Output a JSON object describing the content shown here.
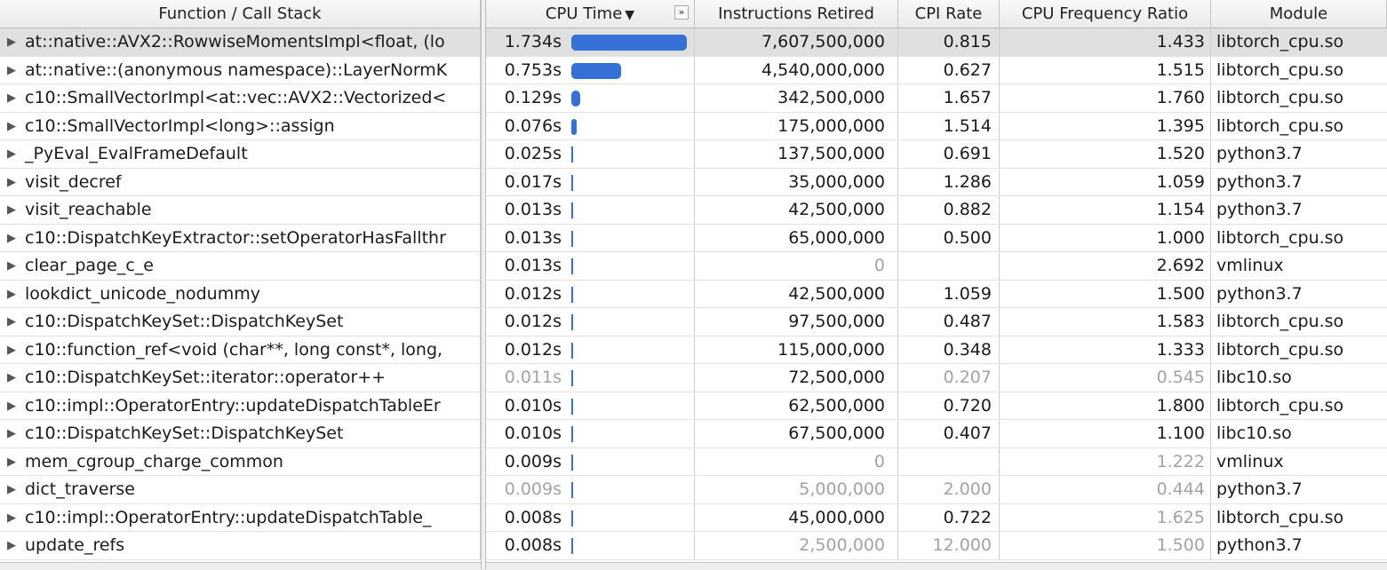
{
  "headers": {
    "function": "Function / Call Stack",
    "cpu_time": "CPU Time",
    "cpu_sort_glyph": "▼",
    "cpu_expand_glyph": "»",
    "instructions": "Instructions Retired",
    "cpi": "CPI Rate",
    "freq": "CPU Frequency Ratio",
    "module": "Module"
  },
  "colors": {
    "bar": "#3570d6",
    "dim_text": "#a3a3a3",
    "selected_row": "#e0e0e0"
  },
  "rows": [
    {
      "fn": "at::native::AVX2::RowwiseMomentsImpl<float, (lo",
      "cpu": "1.734s",
      "cpu_value": 1.734,
      "ins": "7,607,500,000",
      "cpi": "0.815",
      "freq": "1.433",
      "mod": "libtorch_cpu.so"
    },
    {
      "fn": "at::native::(anonymous namespace)::LayerNormK",
      "cpu": "0.753s",
      "cpu_value": 0.753,
      "ins": "4,540,000,000",
      "cpi": "0.627",
      "freq": "1.515",
      "mod": "libtorch_cpu.so"
    },
    {
      "fn": "c10::SmallVectorImpl<at::vec::AVX2::Vectorized<",
      "cpu": "0.129s",
      "cpu_value": 0.129,
      "ins": "342,500,000",
      "cpi": "1.657",
      "freq": "1.760",
      "mod": "libtorch_cpu.so"
    },
    {
      "fn": "c10::SmallVectorImpl<long>::assign",
      "cpu": "0.076s",
      "cpu_value": 0.076,
      "ins": "175,000,000",
      "cpi": "1.514",
      "freq": "1.395",
      "mod": "libtorch_cpu.so"
    },
    {
      "fn": "_PyEval_EvalFrameDefault",
      "cpu": "0.025s",
      "cpu_value": 0.025,
      "ins": "137,500,000",
      "cpi": "0.691",
      "freq": "1.520",
      "mod": "python3.7"
    },
    {
      "fn": "visit_decref",
      "cpu": "0.017s",
      "cpu_value": 0.017,
      "ins": "35,000,000",
      "cpi": "1.286",
      "freq": "1.059",
      "mod": "python3.7"
    },
    {
      "fn": "visit_reachable",
      "cpu": "0.013s",
      "cpu_value": 0.013,
      "ins": "42,500,000",
      "cpi": "0.882",
      "freq": "1.154",
      "mod": "python3.7"
    },
    {
      "fn": "c10::DispatchKeyExtractor::setOperatorHasFallthr",
      "cpu": "0.013s",
      "cpu_value": 0.013,
      "ins": "65,000,000",
      "cpi": "0.500",
      "freq": "1.000",
      "mod": "libtorch_cpu.so"
    },
    {
      "fn": "clear_page_c_e",
      "cpu": "0.013s",
      "cpu_value": 0.013,
      "ins": "0",
      "cpi": "",
      "freq": "2.692",
      "mod": "vmlinux",
      "dim_ins": true
    },
    {
      "fn": "lookdict_unicode_nodummy",
      "cpu": "0.012s",
      "cpu_value": 0.012,
      "ins": "42,500,000",
      "cpi": "1.059",
      "freq": "1.500",
      "mod": "python3.7"
    },
    {
      "fn": "c10::DispatchKeySet::DispatchKeySet",
      "cpu": "0.012s",
      "cpu_value": 0.012,
      "ins": "97,500,000",
      "cpi": "0.487",
      "freq": "1.583",
      "mod": "libtorch_cpu.so"
    },
    {
      "fn": "c10::function_ref<void (char**, long const*, long,",
      "cpu": "0.012s",
      "cpu_value": 0.012,
      "ins": "115,000,000",
      "cpi": "0.348",
      "freq": "1.333",
      "mod": "libtorch_cpu.so"
    },
    {
      "fn": "c10::DispatchKeySet::iterator::operator++",
      "cpu": "0.011s",
      "cpu_value": 0.011,
      "ins": "72,500,000",
      "cpi": "0.207",
      "freq": "0.545",
      "mod": "libc10.so",
      "dim_cpu": true,
      "dim_cpi": true,
      "dim_freq": true
    },
    {
      "fn": "c10::impl::OperatorEntry::updateDispatchTableEr",
      "cpu": "0.010s",
      "cpu_value": 0.01,
      "ins": "62,500,000",
      "cpi": "0.720",
      "freq": "1.800",
      "mod": "libtorch_cpu.so"
    },
    {
      "fn": "c10::DispatchKeySet::DispatchKeySet",
      "cpu": "0.010s",
      "cpu_value": 0.01,
      "ins": "67,500,000",
      "cpi": "0.407",
      "freq": "1.100",
      "mod": "libc10.so"
    },
    {
      "fn": "mem_cgroup_charge_common",
      "cpu": "0.009s",
      "cpu_value": 0.009,
      "ins": "0",
      "cpi": "",
      "freq": "1.222",
      "mod": "vmlinux",
      "dim_ins": true,
      "dim_freq": true
    },
    {
      "fn": "dict_traverse",
      "cpu": "0.009s",
      "cpu_value": 0.009,
      "ins": "5,000,000",
      "cpi": "2.000",
      "freq": "0.444",
      "mod": "python3.7",
      "dim_cpu": true,
      "dim_ins": true,
      "dim_cpi": true,
      "dim_freq": true
    },
    {
      "fn": "c10::impl::OperatorEntry::updateDispatchTable_",
      "cpu": "0.008s",
      "cpu_value": 0.008,
      "ins": "45,000,000",
      "cpi": "0.722",
      "freq": "1.625",
      "mod": "libtorch_cpu.so",
      "dim_freq": true
    },
    {
      "fn": "update_refs",
      "cpu": "0.008s",
      "cpu_value": 0.008,
      "ins": "2,500,000",
      "cpi": "12.000",
      "freq": "1.500",
      "mod": "python3.7",
      "dim_ins": true,
      "dim_cpi": true,
      "dim_freq": true
    }
  ]
}
